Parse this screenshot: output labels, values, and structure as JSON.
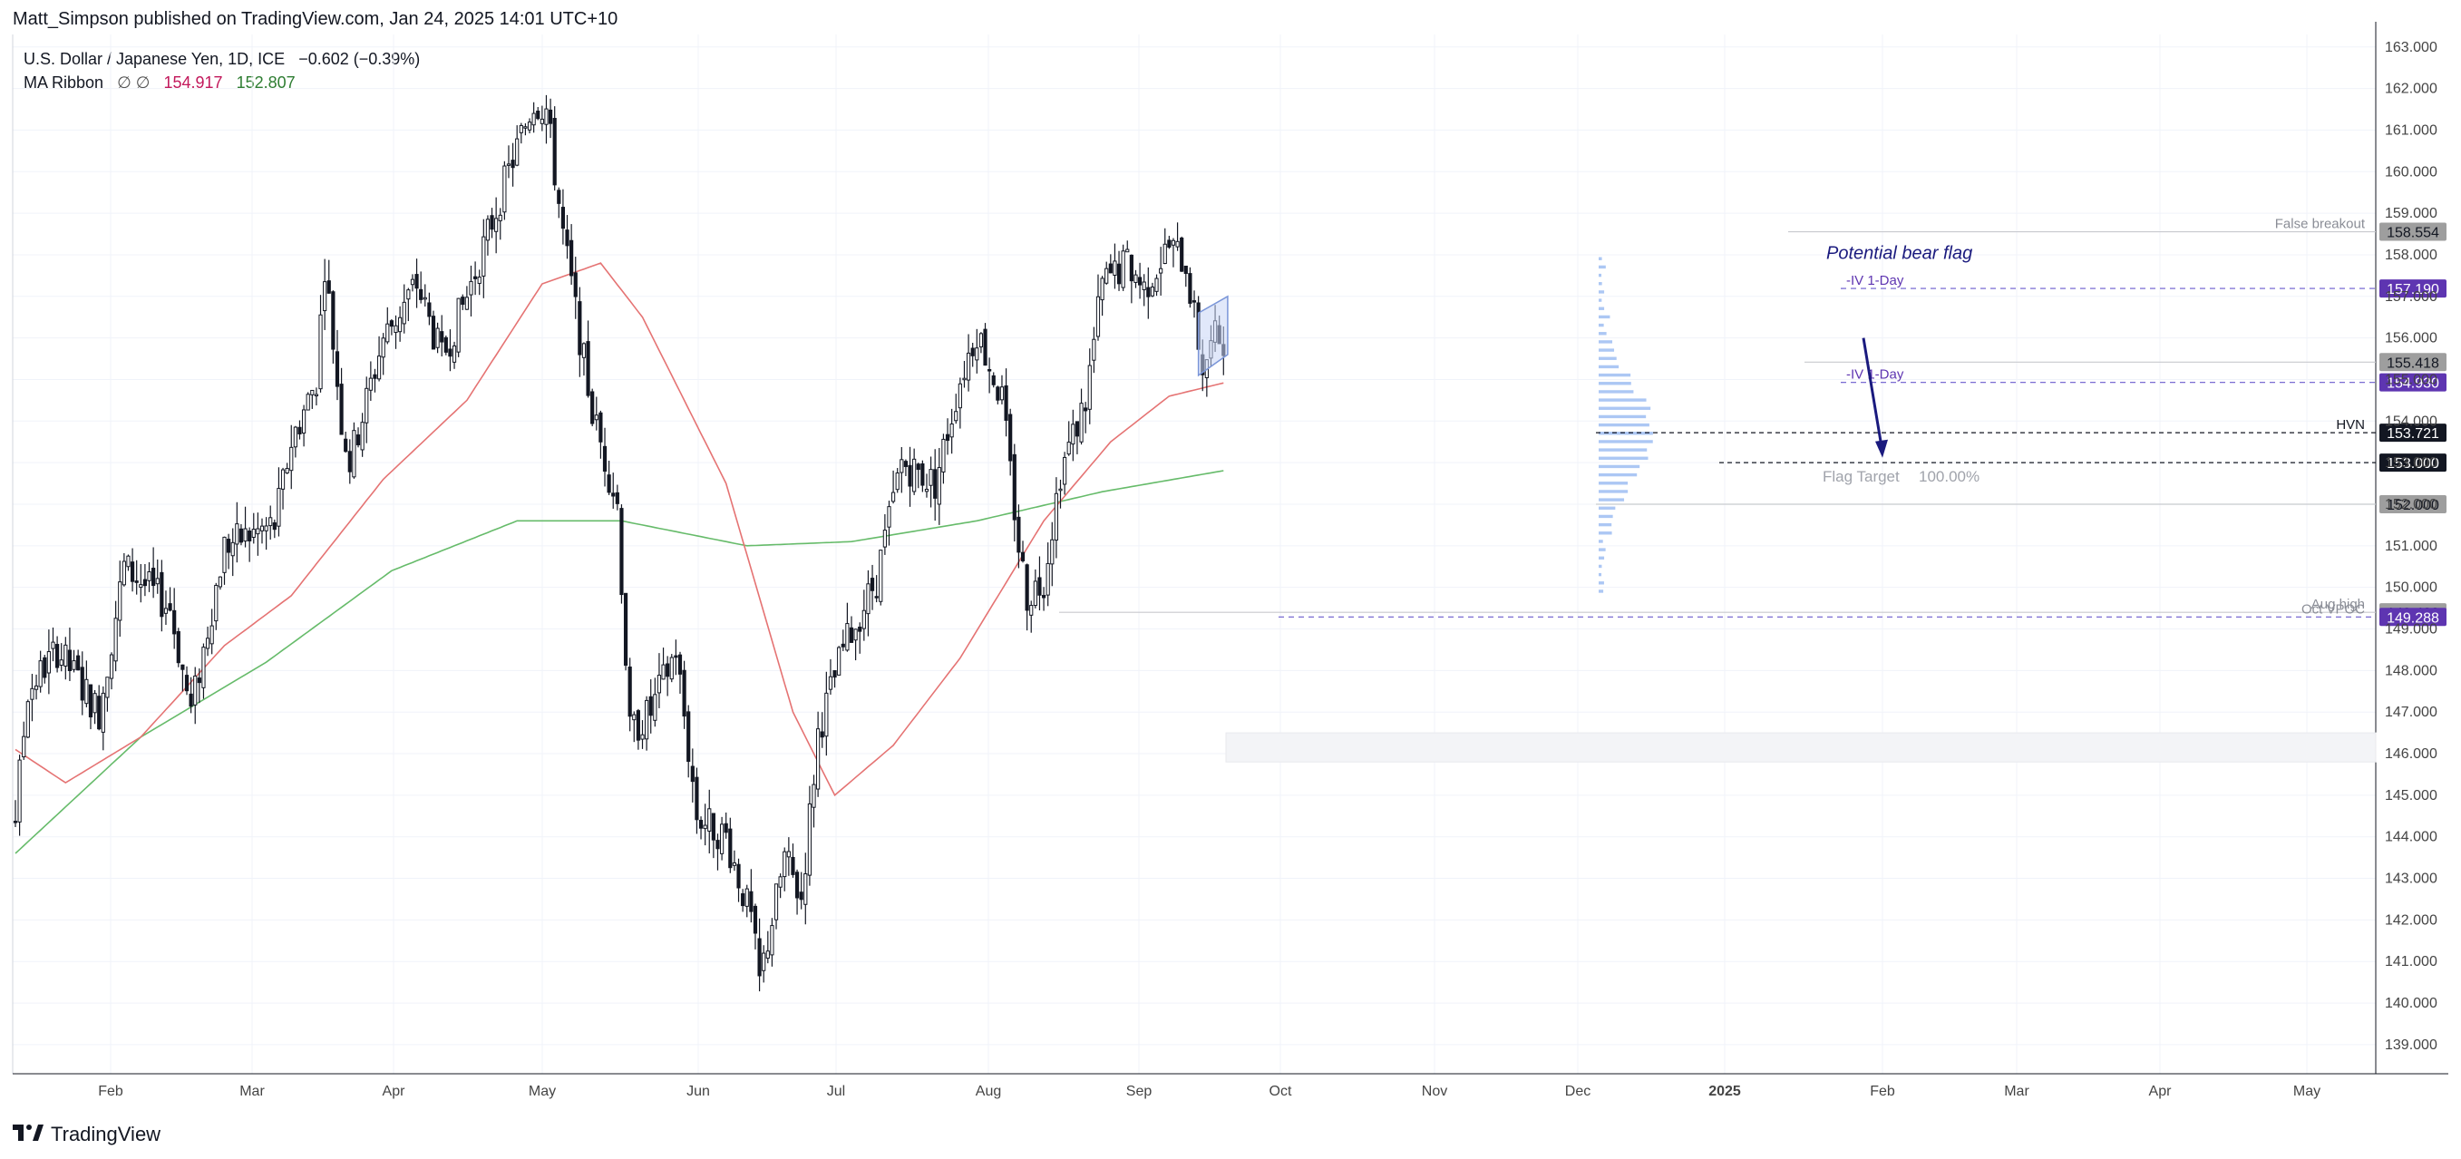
{
  "header": {
    "published": "Matt_Simpson published on TradingView.com, Jan 24, 2025 14:01 UTC+10"
  },
  "legend": {
    "symbol": "U.S. Dollar / Japanese Yen, 1D, ICE",
    "change": "−0.602 (−0.39%)",
    "ma_label": "MA Ribbon",
    "ma_flags": "∅ ∅",
    "ma_red_value": "154.917",
    "ma_green_value": "152.807"
  },
  "brand": {
    "name": "TradingView"
  },
  "colors": {
    "up": "#ffffff",
    "down": "#131722",
    "ma50": "#e57373",
    "ma200": "#66bb6a",
    "accent_purple": "#5e35b1",
    "accent_navy": "#1a1a7e",
    "gray_tag": "#9e9e9e"
  },
  "chart_data": {
    "type": "candlestick",
    "title": "U.S. Dollar / Japanese Yen, 1D, ICE",
    "ylim": [
      138.3,
      163.3
    ],
    "y_ticks": [
      "139.000",
      "140.000",
      "141.000",
      "142.000",
      "143.000",
      "144.000",
      "145.000",
      "146.000",
      "147.000",
      "148.000",
      "149.000",
      "150.000",
      "151.000",
      "152.000",
      "153.000",
      "154.000",
      "155.000",
      "156.000",
      "157.000",
      "158.000",
      "159.000",
      "160.000",
      "161.000",
      "162.000",
      "163.000"
    ],
    "x_labels": [
      "Feb",
      "Mar",
      "Apr",
      "May",
      "Jun",
      "Jul",
      "Aug",
      "Sep",
      "Oct",
      "Nov",
      "Dec",
      "2025",
      "Feb",
      "Mar",
      "Apr",
      "May"
    ],
    "anchors": [
      {
        "d": 0,
        "p": 144.5
      },
      {
        "d": 3,
        "p": 147.5
      },
      {
        "d": 10,
        "p": 148.5
      },
      {
        "d": 20,
        "p": 147.0
      },
      {
        "d": 26,
        "p": 150.5
      },
      {
        "d": 37,
        "p": 149.5
      },
      {
        "d": 42,
        "p": 147.0
      },
      {
        "d": 50,
        "p": 151.0
      },
      {
        "d": 62,
        "p": 151.5
      },
      {
        "d": 66,
        "p": 153.5
      },
      {
        "d": 72,
        "p": 155.0
      },
      {
        "d": 74,
        "p": 157.8
      },
      {
        "d": 78,
        "p": 154.0
      },
      {
        "d": 80,
        "p": 153.0
      },
      {
        "d": 88,
        "p": 156.0
      },
      {
        "d": 96,
        "p": 157.3
      },
      {
        "d": 102,
        "p": 155.5
      },
      {
        "d": 108,
        "p": 157.0
      },
      {
        "d": 118,
        "p": 160.0
      },
      {
        "d": 124,
        "p": 161.7
      },
      {
        "d": 127,
        "p": 161.5
      },
      {
        "d": 131,
        "p": 158.5
      },
      {
        "d": 138,
        "p": 154.2
      },
      {
        "d": 144,
        "p": 152.0
      },
      {
        "d": 147,
        "p": 146.5
      },
      {
        "d": 152,
        "p": 147.0
      },
      {
        "d": 158,
        "p": 148.5
      },
      {
        "d": 163,
        "p": 144.5
      },
      {
        "d": 170,
        "p": 144.0
      },
      {
        "d": 176,
        "p": 142.0
      },
      {
        "d": 178,
        "p": 140.5
      },
      {
        "d": 184,
        "p": 143.5
      },
      {
        "d": 188,
        "p": 142.5
      },
      {
        "d": 192,
        "p": 146.5
      },
      {
        "d": 198,
        "p": 148.5
      },
      {
        "d": 206,
        "p": 150.2
      },
      {
        "d": 212,
        "p": 153.0
      },
      {
        "d": 220,
        "p": 152.5
      },
      {
        "d": 226,
        "p": 155.0
      },
      {
        "d": 230,
        "p": 156.2
      },
      {
        "d": 236,
        "p": 154.5
      },
      {
        "d": 240,
        "p": 151.0
      },
      {
        "d": 242,
        "p": 149.8
      },
      {
        "d": 246,
        "p": 150.2
      },
      {
        "d": 250,
        "p": 152.8
      },
      {
        "d": 256,
        "p": 154.5
      },
      {
        "d": 260,
        "p": 157.3
      },
      {
        "d": 266,
        "p": 157.8
      },
      {
        "d": 270,
        "p": 157.2
      },
      {
        "d": 276,
        "p": 158.2
      },
      {
        "d": 280,
        "p": 157.8
      },
      {
        "d": 282,
        "p": 156.5
      },
      {
        "d": 284,
        "p": 155.3
      },
      {
        "d": 287,
        "p": 156.0
      },
      {
        "d": 289,
        "p": 156.0
      }
    ],
    "ma50_anchors": [
      {
        "d": 0,
        "p": 146.1
      },
      {
        "d": 12,
        "p": 145.3
      },
      {
        "d": 30,
        "p": 146.4
      },
      {
        "d": 50,
        "p": 148.6
      },
      {
        "d": 66,
        "p": 149.8
      },
      {
        "d": 88,
        "p": 152.6
      },
      {
        "d": 108,
        "p": 154.5
      },
      {
        "d": 126,
        "p": 157.3
      },
      {
        "d": 140,
        "p": 157.8
      },
      {
        "d": 150,
        "p": 156.5
      },
      {
        "d": 170,
        "p": 152.5
      },
      {
        "d": 186,
        "p": 147.0
      },
      {
        "d": 196,
        "p": 145.0
      },
      {
        "d": 210,
        "p": 146.2
      },
      {
        "d": 226,
        "p": 148.3
      },
      {
        "d": 246,
        "p": 151.6
      },
      {
        "d": 262,
        "p": 153.5
      },
      {
        "d": 276,
        "p": 154.6
      },
      {
        "d": 289,
        "p": 154.917
      }
    ],
    "ma200_anchors": [
      {
        "d": 0,
        "p": 143.6
      },
      {
        "d": 30,
        "p": 146.4
      },
      {
        "d": 60,
        "p": 148.2
      },
      {
        "d": 90,
        "p": 150.4
      },
      {
        "d": 120,
        "p": 151.6
      },
      {
        "d": 145,
        "p": 151.6
      },
      {
        "d": 175,
        "p": 151.0
      },
      {
        "d": 200,
        "p": 151.1
      },
      {
        "d": 230,
        "p": 151.6
      },
      {
        "d": 260,
        "p": 152.3
      },
      {
        "d": 289,
        "p": 152.807
      }
    ],
    "horizontal_levels": [
      {
        "name": "false-breakout",
        "price": 158.554,
        "label": "False breakout",
        "tag": "158.554",
        "style": "gray"
      },
      {
        "name": "iv-upper",
        "price": 157.19,
        "label": "-IV 1-Day",
        "tag": "157.190",
        "style": "purple"
      },
      {
        "name": "flag-low",
        "price": 155.418,
        "label": "",
        "tag": "155.418",
        "style": "gray"
      },
      {
        "name": "iv-lower",
        "price": 154.93,
        "label": "-IV 1-Day",
        "tag": "154.930",
        "style": "purple"
      },
      {
        "name": "hvn",
        "price": 153.721,
        "label": "HVN",
        "tag": "153.721",
        "style": "black"
      },
      {
        "name": "flag-target-line",
        "price": 153.0,
        "label": "",
        "tag": "153.000",
        "style": "black"
      },
      {
        "name": "level-152",
        "price": 152.0,
        "label": "",
        "tag": "152.000",
        "style": "gray"
      },
      {
        "name": "aug-high",
        "price": 149.4,
        "label": "Aug high",
        "tag": "149.400",
        "style": "gray"
      },
      {
        "name": "oct-vpoc",
        "price": 149.288,
        "label": "Oct VPOC",
        "tag": "149.288",
        "style": "purple"
      }
    ],
    "annotations": {
      "bear_flag_title": "Potential bear flag",
      "flag_target": "Flag Target",
      "flag_pct": "100.00%"
    }
  }
}
